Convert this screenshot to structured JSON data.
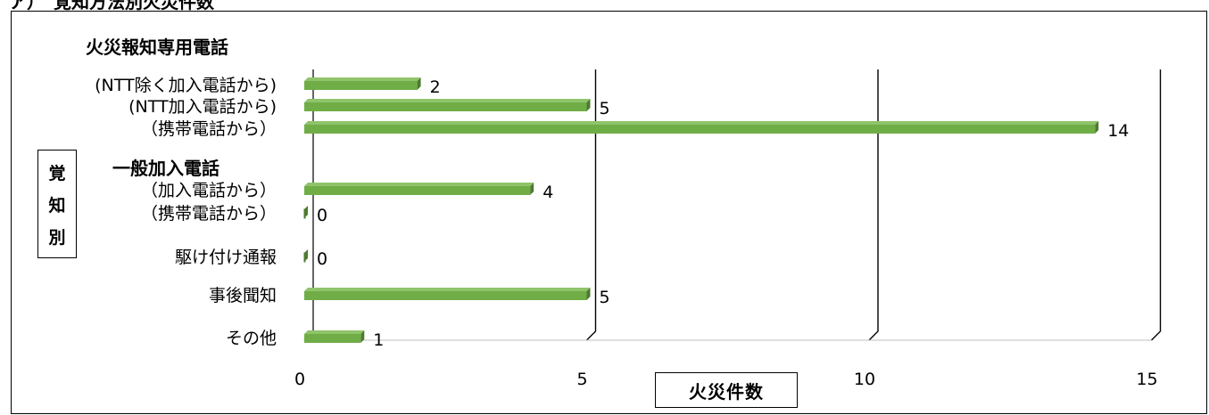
{
  "chart_data": {
    "type": "bar",
    "orientation": "horizontal",
    "style": "3d",
    "bar_color": "#70ad47",
    "top_cut_text": "ア）　覚知方法別火災件数",
    "group_headers": [
      "火災報知専用電話",
      "一般加入電話"
    ],
    "categories": [
      "(NTT除く加入電話から)",
      "(NTT加入電話から)",
      "（携帯電話から）",
      "（加入電話から）",
      "（携帯電話から）",
      "駆け付け通報",
      "事後聞知",
      "その他"
    ],
    "values": [
      2,
      5,
      14,
      4,
      0,
      0,
      5,
      1
    ],
    "xlabel": "火災件数",
    "ylabel_chars": [
      "覚",
      "知",
      "別"
    ],
    "xlim": [
      0,
      15
    ],
    "xticks": [
      0,
      5,
      10,
      15
    ],
    "grid": true
  }
}
